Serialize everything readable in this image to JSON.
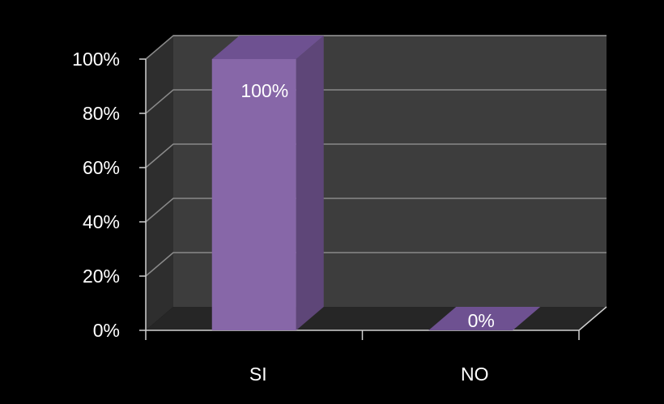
{
  "chart_data": {
    "type": "bar",
    "categories": [
      "SI",
      "NO"
    ],
    "values": [
      100,
      0
    ],
    "data_labels": [
      "100%",
      "0%"
    ],
    "y_tick_labels": [
      "0%",
      "20%",
      "40%",
      "60%",
      "80%",
      "100%"
    ],
    "y_ticks": [
      0,
      20,
      40,
      60,
      80,
      100
    ],
    "ylim": [
      0,
      100
    ],
    "title": "",
    "xlabel": "",
    "ylabel": "",
    "grid": true,
    "legend": "none",
    "colors": {
      "background": "#000000",
      "back_wall": "#3d3d3d",
      "side_wall": "#2e2e2e",
      "floor": "#262626",
      "gridline": "#8a8a8a",
      "bar_front": "#8767a8",
      "bar_side": "#5e4678",
      "bar_top": "#6e5191",
      "axis": "#d0d0d0",
      "text": "#ffffff"
    }
  }
}
